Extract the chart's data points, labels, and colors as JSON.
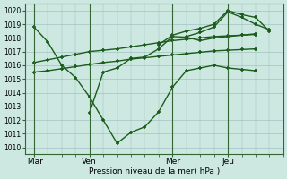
{
  "bg_color": "#cce8e0",
  "grid_color": "#99bbbb",
  "line_color": "#1a5c1a",
  "xlabel": "Pression niveau de la mer( hPa )",
  "ylim": [
    1009.5,
    1020.5
  ],
  "yticks": [
    1010,
    1011,
    1012,
    1013,
    1014,
    1015,
    1016,
    1017,
    1018,
    1019,
    1020
  ],
  "xtick_labels": [
    " Mar",
    "Ven",
    "Mer",
    "Jeu"
  ],
  "xtick_positions": [
    0,
    24,
    60,
    84
  ],
  "vlines": [
    0,
    24,
    60,
    84
  ],
  "xlim": [
    -4,
    108
  ],
  "series1_x": [
    0,
    6,
    12,
    18,
    24,
    30,
    36,
    42,
    48,
    54,
    60,
    66,
    72,
    78,
    84,
    90,
    96
  ],
  "series1_y": [
    1018.8,
    1017.7,
    1016.0,
    1015.1,
    1013.7,
    1012.0,
    1010.3,
    1011.1,
    1011.5,
    1012.6,
    1014.4,
    1015.6,
    1015.8,
    1016.0,
    1015.8,
    1015.7,
    1015.6
  ],
  "series2_x": [
    0,
    6,
    12,
    18,
    24,
    30,
    36,
    42,
    48,
    54,
    60,
    66,
    72,
    78,
    84,
    90,
    96
  ],
  "series2_y": [
    1016.2,
    1016.4,
    1016.6,
    1016.8,
    1017.0,
    1017.1,
    1017.2,
    1017.35,
    1017.5,
    1017.65,
    1017.8,
    1017.9,
    1018.0,
    1018.1,
    1018.15,
    1018.2,
    1018.25
  ],
  "series3_x": [
    0,
    6,
    12,
    18,
    24,
    30,
    36,
    42,
    48,
    54,
    60,
    66,
    72,
    78,
    84,
    90,
    96
  ],
  "series3_y": [
    1015.5,
    1015.6,
    1015.75,
    1015.9,
    1016.05,
    1016.2,
    1016.3,
    1016.45,
    1016.55,
    1016.65,
    1016.75,
    1016.85,
    1016.95,
    1017.05,
    1017.1,
    1017.15,
    1017.2
  ],
  "series4_x": [
    24,
    30,
    36,
    42,
    48,
    54,
    60,
    66,
    72,
    78,
    84,
    90,
    96
  ],
  "series4_y": [
    1012.5,
    1015.5,
    1015.8,
    1016.5,
    1016.6,
    1017.2,
    1018.1,
    1018.05,
    1017.8,
    1018.0,
    1018.1,
    1018.2,
    1018.3
  ],
  "series5_x": [
    54,
    60,
    66,
    72,
    78,
    84,
    90,
    96,
    102
  ],
  "series5_y": [
    1017.5,
    1018.2,
    1018.5,
    1018.7,
    1019.0,
    1020.0,
    1019.7,
    1019.5,
    1018.5
  ],
  "series6_x": [
    66,
    72,
    78,
    84,
    90,
    96,
    102
  ],
  "series6_y": [
    1018.1,
    1018.4,
    1018.8,
    1019.9,
    1019.5,
    1019.0,
    1018.6
  ]
}
